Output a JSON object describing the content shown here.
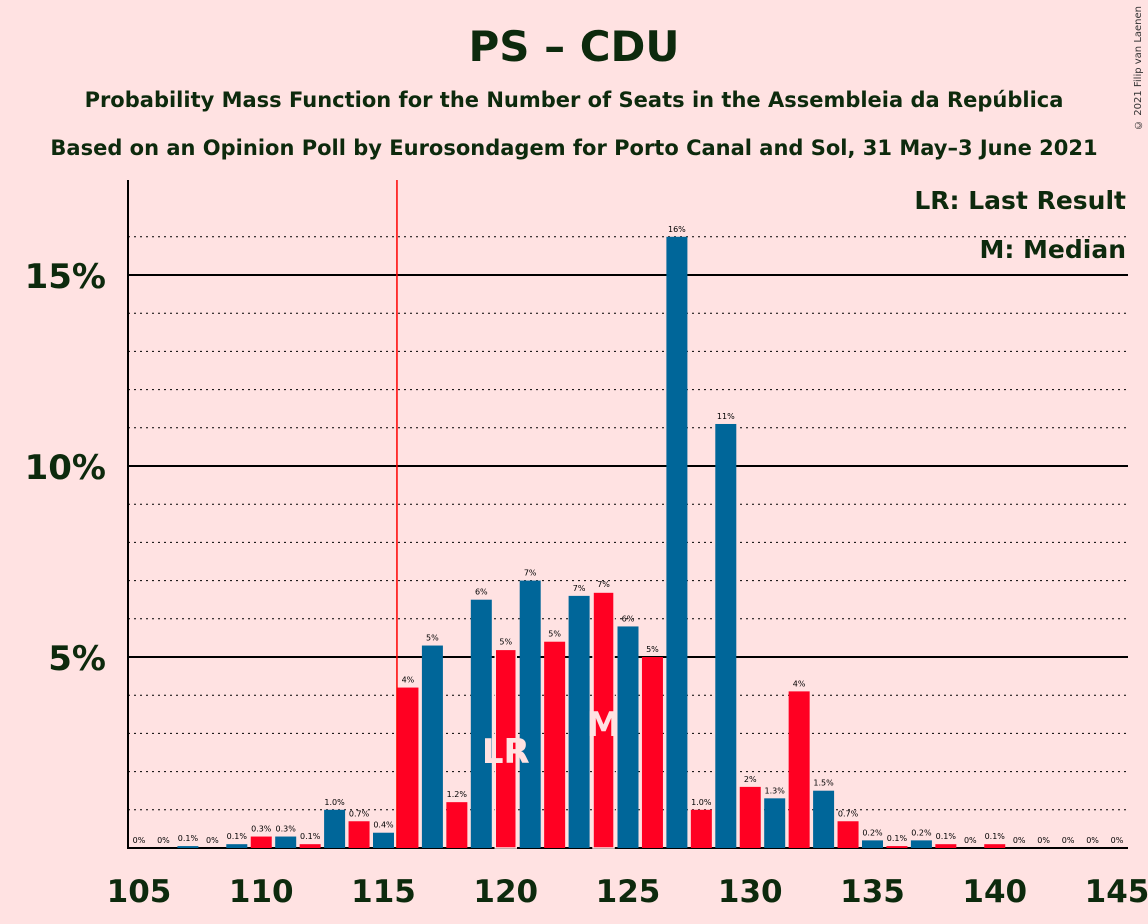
{
  "chart_data": {
    "type": "bar",
    "title": "PS – CDU",
    "subtitle": "Probability Mass Function for the Number of Seats in the Assembleia da República",
    "subtitle2": "Based on an Opinion Poll by Eurosondagem for Porto Canal and Sol, 31 May–3 June 2021",
    "copyright": "© 2021 Filip van Laenen",
    "x": [
      105,
      106,
      107,
      108,
      109,
      110,
      111,
      112,
      113,
      114,
      115,
      116,
      117,
      118,
      119,
      120,
      121,
      122,
      123,
      124,
      125,
      126,
      127,
      128,
      129,
      130,
      131,
      132,
      133,
      134,
      135,
      136,
      137,
      138,
      139,
      140,
      141,
      142,
      143,
      144,
      145
    ],
    "values": [
      0,
      0,
      0.05,
      0,
      0.1,
      0.3,
      0.3,
      0.1,
      1.0,
      0.7,
      0.4,
      4.2,
      5.3,
      1.2,
      6.5,
      5.2,
      7.0,
      5.4,
      6.6,
      6.7,
      5.8,
      5.0,
      16.0,
      1.0,
      11.1,
      1.6,
      1.3,
      4.1,
      1.5,
      0.7,
      0.2,
      0.05,
      0.2,
      0.1,
      0,
      0.1,
      0,
      0,
      0,
      0,
      0
    ],
    "data_labels": [
      "0%",
      "0%",
      "0.1%",
      "0%",
      "0.1%",
      "0.3%",
      "0.3%",
      "0.1%",
      "1.0%",
      "0.7%",
      "0.4%",
      "4%",
      "5%",
      "1.2%",
      "6%",
      "5%",
      "7%",
      "5%",
      "7%",
      "7%",
      "6%",
      "5%",
      "16%",
      "1.0%",
      "11%",
      "2%",
      "1.3%",
      "4%",
      "1.5%",
      "0.7%",
      "0.2%",
      "0.1%",
      "0.2%",
      "0.1%",
      "0%",
      "0.1%",
      "0%",
      "0%",
      "0%",
      "0%",
      "0%"
    ],
    "xticks": [
      "105",
      "110",
      "115",
      "120",
      "125",
      "130",
      "135",
      "140",
      "145"
    ],
    "yticks": [
      "5%",
      "10%",
      "15%"
    ],
    "ylim": [
      0,
      17
    ],
    "majority_line": 116,
    "last_result_seat": 120,
    "median_seat": 124,
    "markers": {
      "last_result": "LR",
      "median": "M"
    },
    "legend": [
      "LR: Last Result",
      "M: Median"
    ],
    "colors": {
      "blue": "#006699",
      "red": "#FF0022",
      "line": "#FF0000",
      "text": "#0d2a0d",
      "background": "#FFE2E2"
    }
  }
}
